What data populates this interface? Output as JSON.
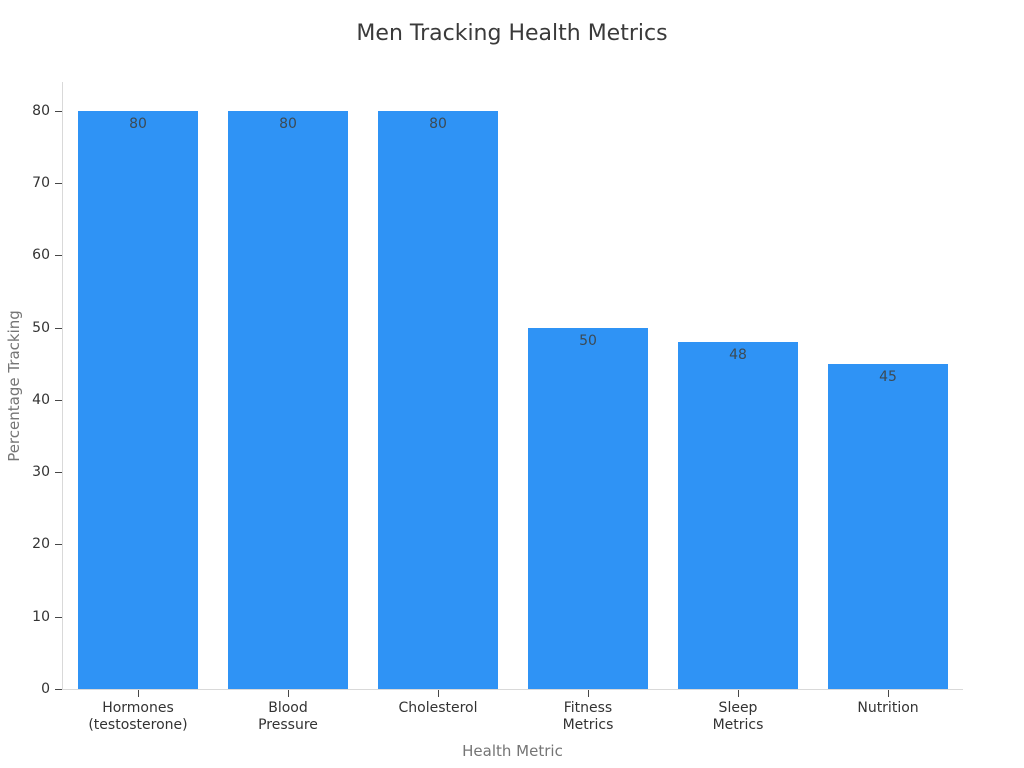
{
  "chart_data": {
    "type": "bar",
    "title": "Men Tracking Health Metrics",
    "xlabel": "Health Metric",
    "ylabel": "Percentage Tracking",
    "categories": [
      "Hormones\n(testosterone)",
      "Blood\nPressure",
      "Cholesterol",
      "Fitness\nMetrics",
      "Sleep\nMetrics",
      "Nutrition"
    ],
    "values": [
      80,
      80,
      80,
      50,
      48,
      45
    ],
    "bar_value_labels": [
      "80",
      "80",
      "80",
      "50",
      "48",
      "45"
    ],
    "yticks": [
      0,
      10,
      20,
      30,
      40,
      50,
      60,
      70,
      80
    ],
    "ylim": [
      0,
      84
    ],
    "bar_color": "#2F93F5",
    "bar_width_fraction": 0.8,
    "grid": false,
    "legend_position": "none"
  }
}
